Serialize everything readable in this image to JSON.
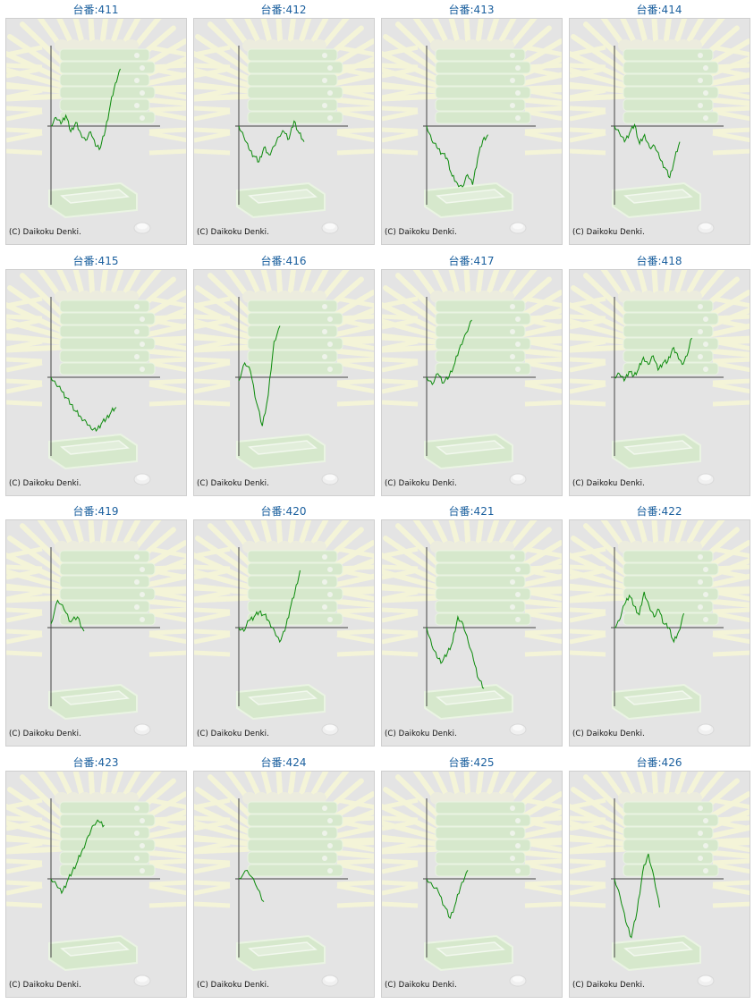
{
  "copyright": "(C) Daikoku Denki.",
  "colors": {
    "line": "#0b8a0b",
    "axis": "#444444",
    "title": "#1a5f9e",
    "bg": "#e4e4e4"
  },
  "charts": [
    {
      "title": "台番:411",
      "chart_data": {
        "type": "line",
        "y": [
          0,
          0.12,
          0.03,
          0.15,
          -0.08,
          0.05,
          -0.1,
          -0.2,
          -0.08,
          -0.28,
          -0.3,
          -0.05,
          0.3,
          0.6,
          0.8
        ]
      }
    },
    {
      "title": "台番:412",
      "chart_data": {
        "type": "line",
        "y": [
          0,
          -0.15,
          -0.32,
          -0.42,
          -0.5,
          -0.3,
          -0.4,
          -0.28,
          -0.15,
          -0.08,
          -0.18,
          0.07,
          -0.1,
          -0.22
        ]
      }
    },
    {
      "title": "台番:413",
      "chart_data": {
        "type": "line",
        "y": [
          0,
          -0.2,
          -0.3,
          -0.38,
          -0.45,
          -0.7,
          -0.8,
          -0.85,
          -0.68,
          -0.82,
          -0.45,
          -0.2,
          -0.12
        ]
      }
    },
    {
      "title": "台番:414",
      "chart_data": {
        "type": "line",
        "y": [
          0,
          -0.1,
          -0.22,
          -0.1,
          0.02,
          -0.25,
          -0.12,
          -0.3,
          -0.28,
          -0.45,
          -0.58,
          -0.72,
          -0.45,
          -0.22
        ]
      }
    },
    {
      "title": "台番:415",
      "chart_data": {
        "type": "line",
        "y": [
          0,
          -0.1,
          -0.18,
          -0.28,
          -0.38,
          -0.48,
          -0.56,
          -0.62,
          -0.72,
          -0.75,
          -0.65,
          -0.58,
          -0.48,
          -0.42
        ]
      }
    },
    {
      "title": "台番:416",
      "chart_data": {
        "type": "line",
        "y": [
          -0.05,
          0.2,
          0.08,
          -0.35,
          -0.68,
          -0.25,
          0.5,
          0.72
        ]
      }
    },
    {
      "title": "台番:417",
      "chart_data": {
        "type": "line",
        "y": [
          0,
          -0.1,
          0.05,
          -0.08,
          0.02,
          0.2,
          0.45,
          0.62,
          0.8
        ]
      }
    },
    {
      "title": "台番:418",
      "chart_data": {
        "type": "line",
        "y": [
          0,
          0.05,
          -0.05,
          0.08,
          0.02,
          0.12,
          0.28,
          0.18,
          0.3,
          0.1,
          0.2,
          0.22,
          0.4,
          0.33,
          0.18,
          0.3,
          0.55
        ]
      }
    },
    {
      "title": "台番:419",
      "chart_data": {
        "type": "line",
        "y": [
          0.05,
          0.38,
          0.25,
          0.08,
          0.15,
          -0.05
        ]
      }
    },
    {
      "title": "台番:420",
      "chart_data": {
        "type": "line",
        "y": [
          0,
          -0.05,
          0.1,
          0.15,
          0.22,
          0.18,
          0.08,
          -0.05,
          -0.2,
          -0.05,
          0.25,
          0.5,
          0.8
        ]
      }
    },
    {
      "title": "台番:421",
      "chart_data": {
        "type": "line",
        "y": [
          0,
          -0.25,
          -0.42,
          -0.48,
          -0.35,
          -0.2,
          0.15,
          0.05,
          -0.2,
          -0.45,
          -0.72,
          -0.85
        ]
      }
    },
    {
      "title": "台番:422",
      "chart_data": {
        "type": "line",
        "y": [
          0,
          0.1,
          0.32,
          0.45,
          0.3,
          0.18,
          0.5,
          0.3,
          0.15,
          0.25,
          0.05,
          0.0,
          -0.2,
          -0.05,
          0.2
        ]
      }
    },
    {
      "title": "台番:423",
      "chart_data": {
        "type": "line",
        "y": [
          0,
          -0.08,
          -0.2,
          -0.05,
          0.1,
          0.25,
          0.42,
          0.6,
          0.75,
          0.8,
          0.75
        ]
      }
    },
    {
      "title": "台番:424",
      "chart_data": {
        "type": "line",
        "y": [
          0,
          0.12,
          -0.08,
          -0.32
        ]
      }
    },
    {
      "title": "台番:425",
      "chart_data": {
        "type": "line",
        "y": [
          0,
          -0.1,
          -0.18,
          -0.38,
          -0.55,
          -0.32,
          -0.05,
          0.12
        ]
      }
    },
    {
      "title": "台番:426",
      "chart_data": {
        "type": "line",
        "y": [
          0,
          -0.25,
          -0.6,
          -0.82,
          -0.45,
          0.1,
          0.35,
          0.02,
          -0.4
        ]
      }
    }
  ]
}
